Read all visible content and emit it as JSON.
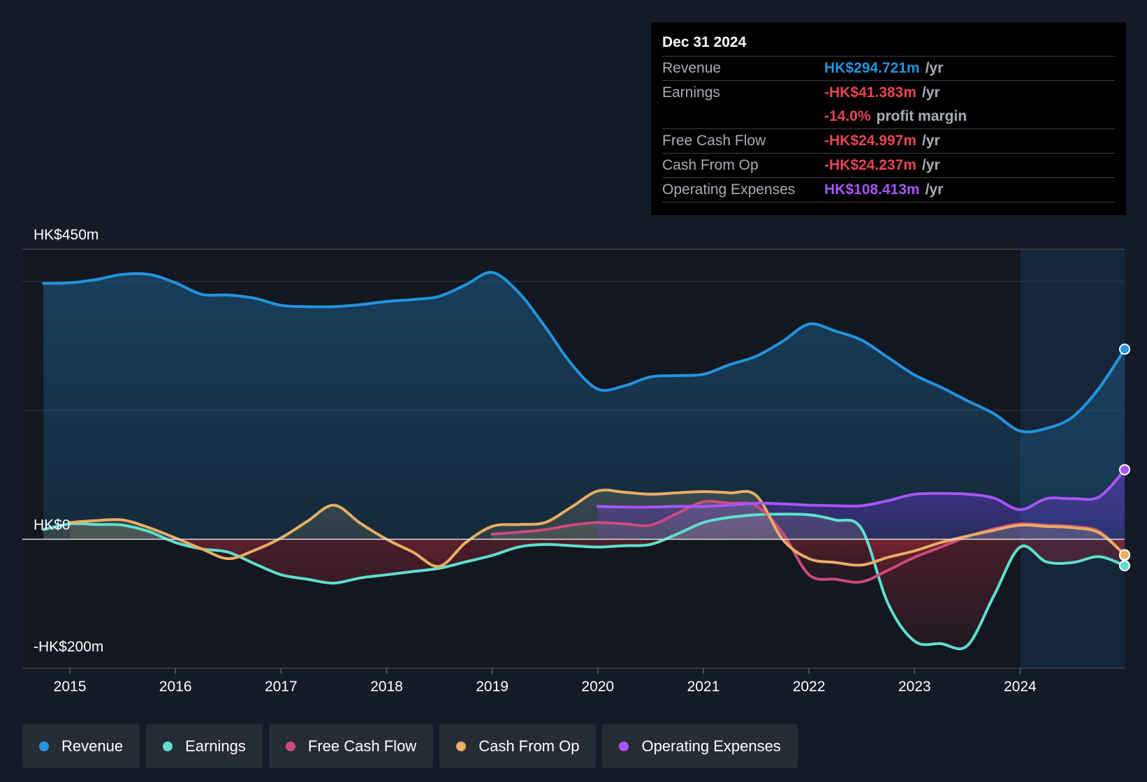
{
  "tooltip": {
    "date": "Dec 31 2024",
    "rows": [
      {
        "label": "Revenue",
        "value": "HK$294.721m",
        "unit": "/yr",
        "color": "#2394df"
      },
      {
        "label": "Earnings",
        "value": "-HK$41.383m",
        "unit": "/yr",
        "color": "#e64555"
      },
      {
        "label": "",
        "value": "-14.0%",
        "unit": "profit margin",
        "color": "#e64555"
      },
      {
        "label": "Free Cash Flow",
        "value": "-HK$24.997m",
        "unit": "/yr",
        "color": "#e64555"
      },
      {
        "label": "Cash From Op",
        "value": "-HK$24.237m",
        "unit": "/yr",
        "color": "#e64555"
      },
      {
        "label": "Operating Expenses",
        "value": "HK$108.413m",
        "unit": "/yr",
        "color": "#a855f7"
      }
    ]
  },
  "legend": [
    {
      "label": "Revenue",
      "color": "#2394df"
    },
    {
      "label": "Earnings",
      "color": "#5ee0ce"
    },
    {
      "label": "Free Cash Flow",
      "color": "#cc4b7f"
    },
    {
      "label": "Cash From Op",
      "color": "#e8ae62"
    },
    {
      "label": "Operating Expenses",
      "color": "#a855f7"
    }
  ],
  "chart_data": {
    "type": "line",
    "title": "",
    "xlabel": "",
    "ylabel": "",
    "y_top_label": "HK$450m",
    "y_zero_label": "HK$0",
    "y_bottom_label": "-HK$200m",
    "ylim": [
      -200,
      450
    ],
    "xlim": [
      2014.55,
      2024.99
    ],
    "x_ticks": [
      2015,
      2016,
      2017,
      2018,
      2019,
      2020,
      2021,
      2022,
      2023,
      2024
    ],
    "x_tick_labels": [
      "2015",
      "2016",
      "2017",
      "2018",
      "2019",
      "2020",
      "2021",
      "2022",
      "2023",
      "2024"
    ],
    "highlight_start": 2024,
    "series": [
      {
        "name": "Revenue",
        "color": "#2394df",
        "fill": true,
        "points": [
          [
            2014.75,
            397
          ],
          [
            2015.0,
            398
          ],
          [
            2015.25,
            403
          ],
          [
            2015.5,
            411
          ],
          [
            2015.75,
            411
          ],
          [
            2016.0,
            398
          ],
          [
            2016.25,
            380
          ],
          [
            2016.5,
            379
          ],
          [
            2016.75,
            374
          ],
          [
            2017.0,
            363
          ],
          [
            2017.25,
            361
          ],
          [
            2017.5,
            361
          ],
          [
            2017.75,
            364
          ],
          [
            2018.0,
            369
          ],
          [
            2018.25,
            372
          ],
          [
            2018.5,
            377
          ],
          [
            2018.75,
            395
          ],
          [
            2019.0,
            414
          ],
          [
            2019.25,
            383
          ],
          [
            2019.5,
            330
          ],
          [
            2019.75,
            272
          ],
          [
            2020.0,
            233
          ],
          [
            2020.25,
            238
          ],
          [
            2020.5,
            252
          ],
          [
            2020.75,
            254
          ],
          [
            2021.0,
            256
          ],
          [
            2021.25,
            271
          ],
          [
            2021.5,
            284
          ],
          [
            2021.75,
            307
          ],
          [
            2022.0,
            334
          ],
          [
            2022.25,
            323
          ],
          [
            2022.5,
            309
          ],
          [
            2022.75,
            282
          ],
          [
            2023.0,
            255
          ],
          [
            2023.25,
            236
          ],
          [
            2023.5,
            215
          ],
          [
            2023.75,
            195
          ],
          [
            2024.0,
            168
          ],
          [
            2024.25,
            172
          ],
          [
            2024.5,
            190
          ],
          [
            2024.75,
            235
          ],
          [
            2024.99,
            295
          ]
        ]
      },
      {
        "name": "Earnings",
        "color": "#5ee0ce",
        "fill": true,
        "points": [
          [
            2014.75,
            15
          ],
          [
            2015.0,
            24
          ],
          [
            2015.25,
            23
          ],
          [
            2015.5,
            22
          ],
          [
            2015.75,
            12
          ],
          [
            2016.0,
            -5
          ],
          [
            2016.25,
            -15
          ],
          [
            2016.5,
            -20
          ],
          [
            2016.75,
            -38
          ],
          [
            2017.0,
            -55
          ],
          [
            2017.25,
            -62
          ],
          [
            2017.5,
            -68
          ],
          [
            2017.75,
            -60
          ],
          [
            2018.0,
            -55
          ],
          [
            2018.25,
            -50
          ],
          [
            2018.5,
            -45
          ],
          [
            2018.75,
            -35
          ],
          [
            2019.0,
            -25
          ],
          [
            2019.25,
            -12
          ],
          [
            2019.5,
            -8
          ],
          [
            2019.75,
            -10
          ],
          [
            2020.0,
            -12
          ],
          [
            2020.25,
            -10
          ],
          [
            2020.5,
            -8
          ],
          [
            2020.75,
            8
          ],
          [
            2021.0,
            26
          ],
          [
            2021.25,
            34
          ],
          [
            2021.5,
            38
          ],
          [
            2021.75,
            39
          ],
          [
            2022.0,
            38
          ],
          [
            2022.25,
            30
          ],
          [
            2022.5,
            16
          ],
          [
            2022.75,
            -100
          ],
          [
            2023.0,
            -158
          ],
          [
            2023.25,
            -162
          ],
          [
            2023.5,
            -165
          ],
          [
            2023.75,
            -88
          ],
          [
            2024.0,
            -12
          ],
          [
            2024.25,
            -35
          ],
          [
            2024.5,
            -36
          ],
          [
            2024.75,
            -27
          ],
          [
            2024.99,
            -41
          ]
        ]
      },
      {
        "name": "Free Cash Flow",
        "color": "#cc4b7f",
        "fill": true,
        "points": [
          [
            2019.0,
            8
          ],
          [
            2019.25,
            11
          ],
          [
            2019.5,
            15
          ],
          [
            2019.75,
            22
          ],
          [
            2020.0,
            26
          ],
          [
            2020.25,
            24
          ],
          [
            2020.5,
            22
          ],
          [
            2020.75,
            40
          ],
          [
            2021.0,
            58
          ],
          [
            2021.25,
            56
          ],
          [
            2021.5,
            52
          ],
          [
            2021.75,
            10
          ],
          [
            2022.0,
            -55
          ],
          [
            2022.25,
            -62
          ],
          [
            2022.5,
            -66
          ],
          [
            2022.75,
            -48
          ],
          [
            2023.0,
            -28
          ],
          [
            2023.25,
            -12
          ],
          [
            2023.5,
            4
          ],
          [
            2023.75,
            16
          ],
          [
            2024.0,
            24
          ],
          [
            2024.25,
            22
          ],
          [
            2024.5,
            20
          ],
          [
            2024.75,
            12
          ],
          [
            2024.99,
            -25
          ]
        ]
      },
      {
        "name": "Cash From Op",
        "color": "#e8ae62",
        "fill": true,
        "points": [
          [
            2015.0,
            26
          ],
          [
            2015.25,
            29
          ],
          [
            2015.5,
            30
          ],
          [
            2015.75,
            18
          ],
          [
            2016.0,
            2
          ],
          [
            2016.25,
            -15
          ],
          [
            2016.5,
            -30
          ],
          [
            2016.75,
            -17
          ],
          [
            2017.0,
            2
          ],
          [
            2017.25,
            28
          ],
          [
            2017.5,
            53
          ],
          [
            2017.75,
            25
          ],
          [
            2018.0,
            0
          ],
          [
            2018.25,
            -20
          ],
          [
            2018.5,
            -42
          ],
          [
            2018.75,
            -5
          ],
          [
            2019.0,
            20
          ],
          [
            2019.25,
            23
          ],
          [
            2019.5,
            26
          ],
          [
            2019.75,
            50
          ],
          [
            2020.0,
            75
          ],
          [
            2020.25,
            73
          ],
          [
            2020.5,
            70
          ],
          [
            2020.75,
            72
          ],
          [
            2021.0,
            74
          ],
          [
            2021.25,
            72
          ],
          [
            2021.5,
            68
          ],
          [
            2021.75,
            0
          ],
          [
            2022.0,
            -30
          ],
          [
            2022.25,
            -36
          ],
          [
            2022.5,
            -40
          ],
          [
            2022.75,
            -28
          ],
          [
            2023.0,
            -18
          ],
          [
            2023.25,
            -5
          ],
          [
            2023.5,
            5
          ],
          [
            2023.75,
            14
          ],
          [
            2024.0,
            22
          ],
          [
            2024.25,
            20
          ],
          [
            2024.5,
            18
          ],
          [
            2024.75,
            10
          ],
          [
            2024.99,
            -24
          ]
        ]
      },
      {
        "name": "Operating Expenses",
        "color": "#a855f7",
        "fill": true,
        "points": [
          [
            2020.0,
            51
          ],
          [
            2020.25,
            50
          ],
          [
            2020.5,
            50
          ],
          [
            2020.75,
            51
          ],
          [
            2021.0,
            51
          ],
          [
            2021.25,
            53
          ],
          [
            2021.5,
            56
          ],
          [
            2021.75,
            55
          ],
          [
            2022.0,
            53
          ],
          [
            2022.25,
            52
          ],
          [
            2022.5,
            52
          ],
          [
            2022.75,
            60
          ],
          [
            2023.0,
            70
          ],
          [
            2023.25,
            71
          ],
          [
            2023.5,
            70
          ],
          [
            2023.75,
            64
          ],
          [
            2024.0,
            46
          ],
          [
            2024.25,
            63
          ],
          [
            2024.5,
            63
          ],
          [
            2024.75,
            66
          ],
          [
            2024.99,
            108
          ]
        ]
      }
    ]
  }
}
